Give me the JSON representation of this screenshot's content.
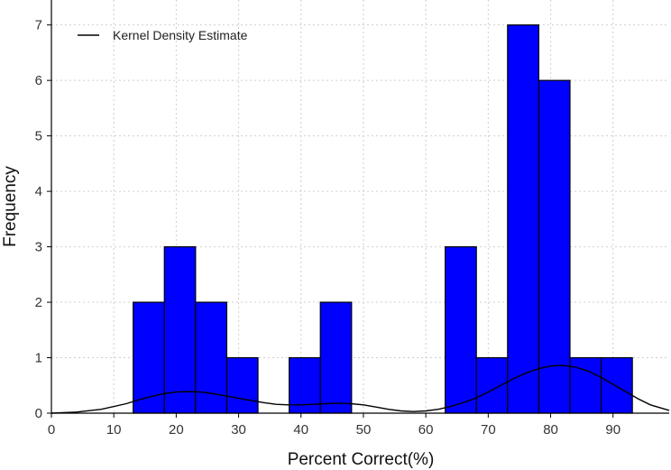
{
  "chart_data": {
    "type": "bar",
    "xlabel": "Percent Correct(%)",
    "ylabel": "Frequency",
    "xlim": [
      0,
      99
    ],
    "ylim": [
      0,
      7.45
    ],
    "x_ticks": [
      0,
      10,
      20,
      30,
      40,
      50,
      60,
      70,
      80,
      90
    ],
    "y_ticks": [
      0,
      1,
      2,
      3,
      4,
      5,
      6,
      7
    ],
    "grid": true,
    "legend_position": "top-left",
    "bar_color": "#0000ff",
    "bins": [
      {
        "start": 13.1,
        "end": 18.1,
        "count": 2
      },
      {
        "start": 18.1,
        "end": 23.1,
        "count": 3
      },
      {
        "start": 23.1,
        "end": 28.1,
        "count": 2
      },
      {
        "start": 28.1,
        "end": 33.1,
        "count": 1
      },
      {
        "start": 33.1,
        "end": 38.1,
        "count": 0
      },
      {
        "start": 38.1,
        "end": 43.1,
        "count": 1
      },
      {
        "start": 43.1,
        "end": 48.1,
        "count": 2
      },
      {
        "start": 48.1,
        "end": 53.1,
        "count": 0
      },
      {
        "start": 53.1,
        "end": 58.1,
        "count": 0
      },
      {
        "start": 58.1,
        "end": 63.1,
        "count": 0
      },
      {
        "start": 63.1,
        "end": 68.1,
        "count": 3
      },
      {
        "start": 68.1,
        "end": 73.1,
        "count": 1
      },
      {
        "start": 73.1,
        "end": 78.1,
        "count": 7
      },
      {
        "start": 78.1,
        "end": 83.1,
        "count": 6
      },
      {
        "start": 83.1,
        "end": 88.1,
        "count": 1
      },
      {
        "start": 88.1,
        "end": 93.1,
        "count": 1
      }
    ],
    "series": [
      {
        "name": "Kernel Density Estimate",
        "type": "line",
        "color": "#000000",
        "x": [
          0,
          4,
          8,
          12,
          14,
          16,
          18,
          20,
          22,
          24,
          26,
          28,
          30,
          32,
          34,
          36,
          38,
          40,
          42,
          44,
          46,
          48,
          50,
          52,
          54,
          56,
          58,
          60,
          62,
          64,
          66,
          68,
          70,
          72,
          74,
          76,
          78,
          80,
          82,
          84,
          86,
          88,
          90,
          92,
          94,
          96,
          99
        ],
        "y": [
          0.0,
          0.02,
          0.07,
          0.17,
          0.24,
          0.3,
          0.35,
          0.38,
          0.39,
          0.38,
          0.35,
          0.31,
          0.27,
          0.23,
          0.19,
          0.16,
          0.15,
          0.15,
          0.16,
          0.17,
          0.18,
          0.17,
          0.15,
          0.11,
          0.07,
          0.04,
          0.03,
          0.04,
          0.07,
          0.12,
          0.19,
          0.27,
          0.38,
          0.5,
          0.62,
          0.72,
          0.8,
          0.85,
          0.86,
          0.83,
          0.76,
          0.65,
          0.52,
          0.39,
          0.26,
          0.15,
          0.05
        ]
      }
    ]
  }
}
